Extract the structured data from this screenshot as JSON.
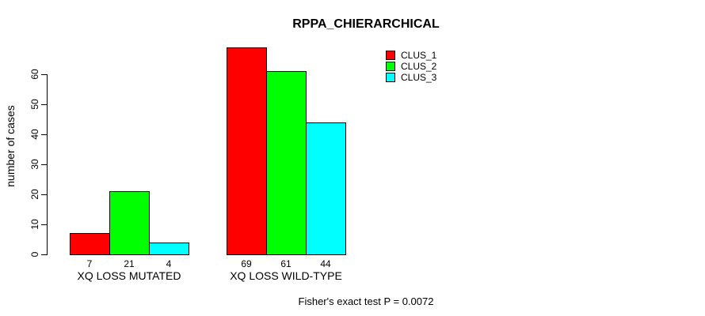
{
  "chart_data": {
    "type": "bar",
    "title": "RPPA_CHIERARCHICAL",
    "ylabel": "number of cases",
    "xlabel": "",
    "ylim": [
      0,
      60
    ],
    "yticks": [
      0,
      10,
      20,
      30,
      40,
      50,
      60
    ],
    "grid": false,
    "legend_position": "top-right",
    "bar_border_color": "#000000",
    "series": [
      {
        "name": "CLUS_1",
        "color": "#FF0000"
      },
      {
        "name": "CLUS_2",
        "color": "#00FF00"
      },
      {
        "name": "CLUS_3",
        "color": "#00FFFF"
      }
    ],
    "groups": [
      {
        "label": "XQ LOSS MUTATED",
        "values": [
          7,
          21,
          4
        ]
      },
      {
        "label": "XQ LOSS WILD-TYPE",
        "values": [
          69,
          61,
          44
        ]
      }
    ],
    "bar_value_labels": [
      "7",
      "21",
      "4",
      "69",
      "61",
      "44"
    ],
    "annotation": "Fisher's exact test P = 0.0072"
  }
}
